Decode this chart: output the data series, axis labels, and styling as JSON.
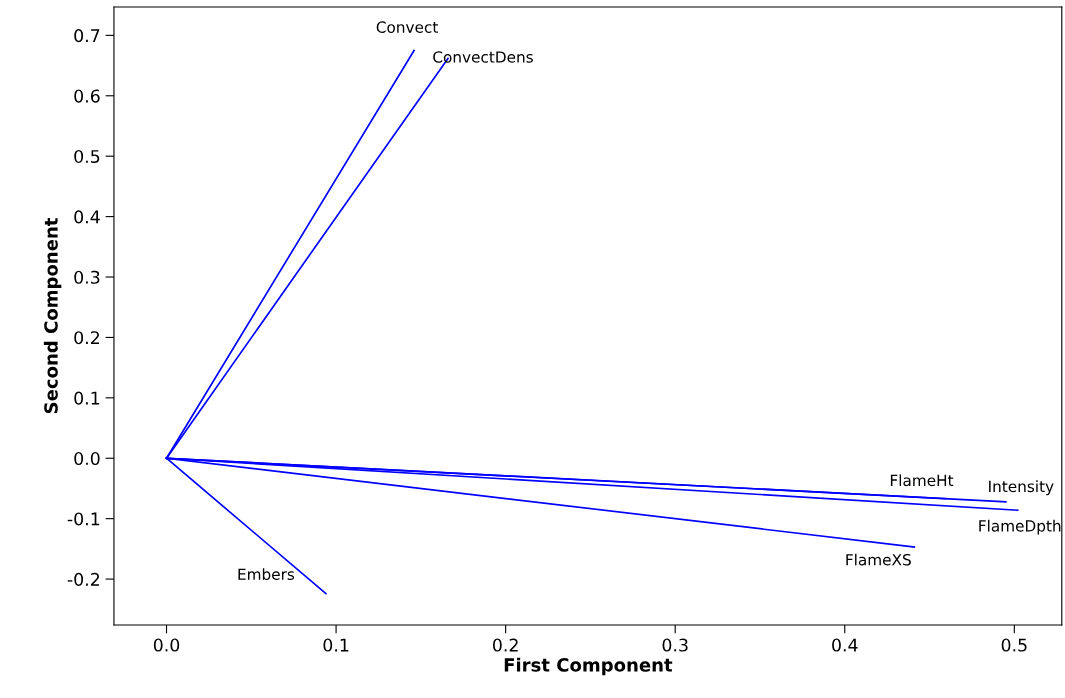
{
  "chart_data": {
    "type": "line",
    "xlabel": "First Component",
    "ylabel": "Second Component",
    "xlim": [
      -0.031,
      0.528
    ],
    "ylim": [
      -0.276,
      0.747
    ],
    "xticks": [
      {
        "value": 0,
        "label": "0.0"
      },
      0.1,
      0.2,
      0.3,
      0.4,
      0.5
    ],
    "yticks": [
      {
        "value": -0.2,
        "label": "-0.2"
      },
      {
        "value": -0.1,
        "label": "-0.1"
      },
      {
        "value": 0,
        "label": "0.0"
      },
      0.1,
      0.2,
      0.3,
      0.4,
      0.5,
      0.6,
      0.7
    ],
    "grid": false,
    "legend": false,
    "marker": "none",
    "line_style": "solid",
    "series": [
      {
        "name": "Convect",
        "color": "#0000ff",
        "x": [
          0,
          0.146
        ],
        "values": [
          0,
          0.675
        ]
      },
      {
        "name": "ConvectDens",
        "color": "#0000ff",
        "x": [
          0,
          0.166
        ],
        "values": [
          0,
          0.662
        ]
      },
      {
        "name": "FlameHt",
        "color": "#0000ff",
        "x": [
          0,
          0.46
        ],
        "values": [
          0,
          -0.067
        ]
      },
      {
        "name": "Intensity",
        "color": "#0000ff",
        "x": [
          0,
          0.495
        ],
        "values": [
          0,
          -0.072
        ]
      },
      {
        "name": "FlameDpth",
        "color": "#0000ff",
        "x": [
          0,
          0.502
        ],
        "values": [
          0,
          -0.086
        ]
      },
      {
        "name": "FlameXS",
        "color": "#0000ff",
        "x": [
          0,
          0.441
        ],
        "values": [
          0,
          -0.147
        ]
      },
      {
        "name": "Embers",
        "color": "#0000ff",
        "x": [
          0,
          0.094
        ],
        "values": [
          0,
          -0.224
        ]
      }
    ]
  }
}
